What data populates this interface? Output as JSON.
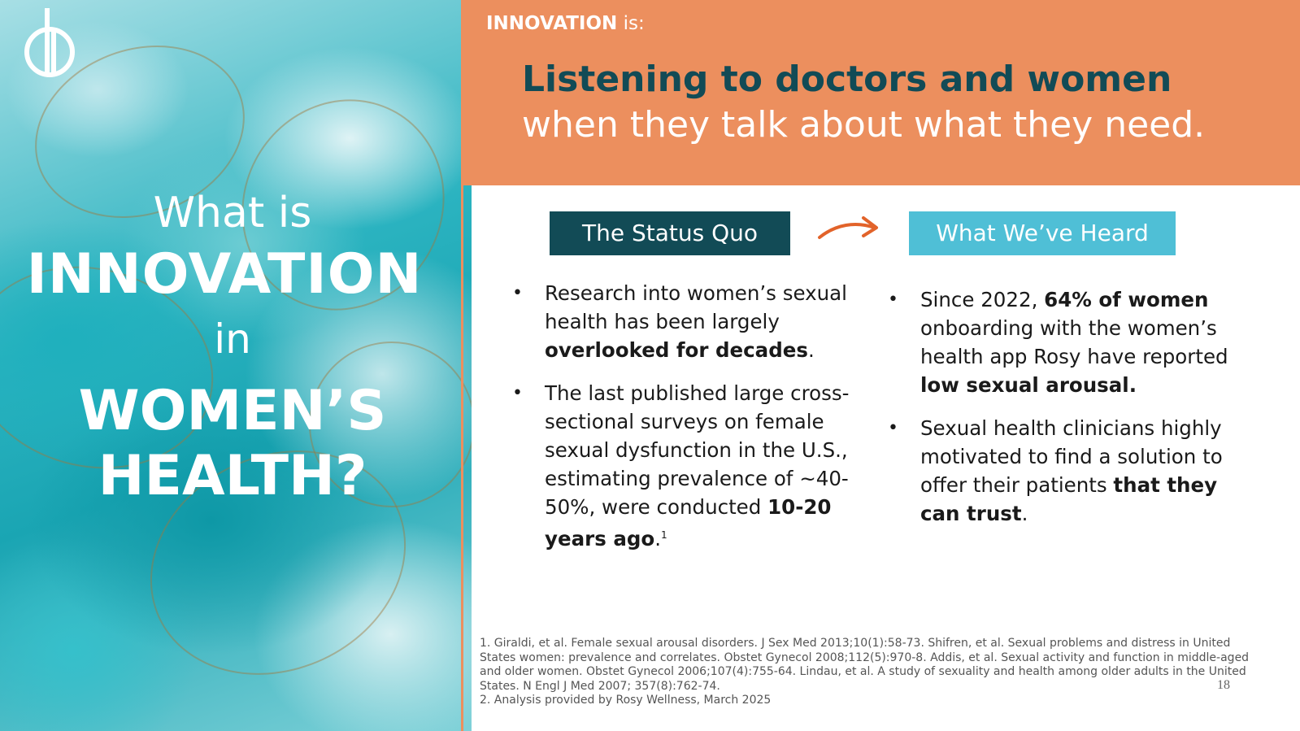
{
  "left_panel": {
    "title_what_is": "What is",
    "title_innovation": "INNOVATION",
    "title_in": "in",
    "title_womens": "WOMEN’S",
    "title_health": "HEALTH?",
    "logo": "db-monogram-logo"
  },
  "header": {
    "kicker_bold": "INNOVATION",
    "kicker_rest": " is:",
    "headline_line1": "Listening to doctors and women",
    "headline_line2": "when they talk about what they need."
  },
  "columns": {
    "status_quo_label": "The Status Quo",
    "heard_label": "What We’ve Heard",
    "arrow_icon": "right-arrow-icon",
    "status_quo": [
      {
        "pre": "Research into women’s sexual health has been largely ",
        "bold": "overlooked for decades",
        "post": ".",
        "sup": ""
      },
      {
        "pre": "The last published large cross-sectional surveys on female sexual dysfunction in the U.S., estimating prevalence of ~40-50%, were conducted ",
        "bold": "10-20 years ago",
        "post": ".",
        "sup": "1"
      }
    ],
    "heard": [
      {
        "pre": "Since 2022, ",
        "bold": "64% of women",
        "post": " onboarding with the women’s health app Rosy have reported ",
        "bold2": "low sexual arousal.",
        "post2": ""
      },
      {
        "pre": "Sexual health clinicians highly motivated to find a solution to offer their patients ",
        "bold": "that they can trust",
        "post": ".",
        "bold2": "",
        "post2": ""
      }
    ]
  },
  "footnotes": {
    "line1": "1. Giraldi, et al. Female sexual arousal disorders. J Sex Med 2013;10(1):58-73. Shifren, et al. Sexual problems and distress in United States women: prevalence and correlates. Obstet Gynecol 2008;112(5):970-8. Addis, et al. Sexual activity and function in middle-aged and older women. Obstet Gynecol 2006;107(4):755-64. Lindau, et al. A study of sexuality and health among older adults in the United States. N Engl J Med 2007; 357(8):762-74.",
    "line2": "2. Analysis provided by Rosy Wellness, March 2025"
  },
  "page_number": "18",
  "colors": {
    "orange": "#ec8f5e",
    "dark_teal": "#124b56",
    "light_teal": "#4fbfd6",
    "arrow": "#e2632a"
  }
}
